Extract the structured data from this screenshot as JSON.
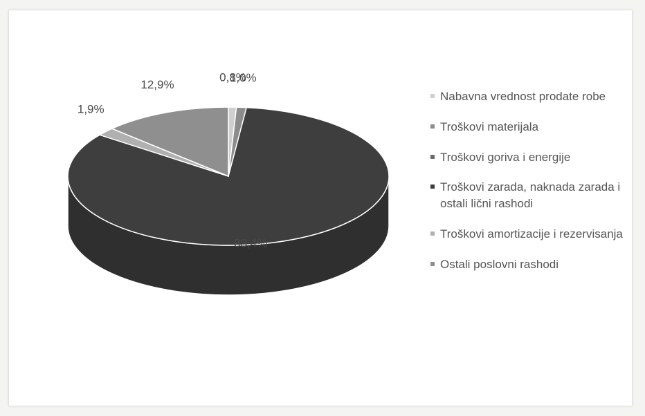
{
  "chart_data": {
    "type": "pie3d",
    "categories": [
      "Nabavna vrednost prodate robe",
      "Troškovi materijala",
      "Troškovi goriva i energije",
      "Troškovi zarada, naknada zarada i ostali lični rashodi",
      "Troškovi amortizacije i rezervisanja",
      "Ostali poslovni rashodi"
    ],
    "values": [
      0.8,
      1.0,
      null,
      83.4,
      1.9,
      12.9
    ],
    "value_labels": [
      "0,8%",
      "1,0%",
      null,
      "83,4%",
      "1,9%",
      "12,9%"
    ],
    "colors": [
      "#cfcfcf",
      "#8c8c8c",
      "#6a6a6a",
      "#3e3e3e",
      "#b0b0b0",
      "#8f8f8f"
    ]
  }
}
